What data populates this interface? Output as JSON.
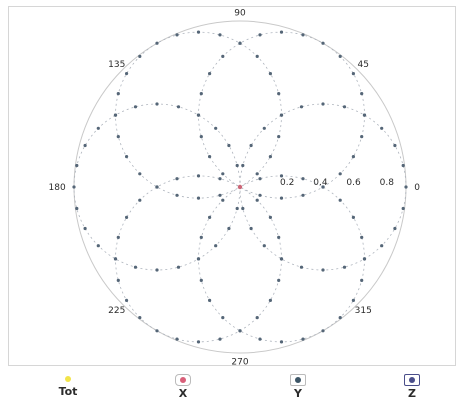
{
  "chart_data": {
    "type": "polar-scatter",
    "title": "",
    "angle_unit": "degrees",
    "angle_labels": [
      "0",
      "45",
      "90",
      "135",
      "180",
      "225",
      "270",
      "315"
    ],
    "radial_ticks": [
      0.2,
      0.4,
      0.6,
      0.8
    ],
    "radial_tick_labels": [
      "0.2",
      "0.4",
      "0.6",
      "0.8"
    ],
    "rlim": [
      0,
      1
    ],
    "grid": false,
    "legend_position": "bottom",
    "series": [
      {
        "name": "Tot",
        "color": "#f2e44a",
        "marker": "dot",
        "values": []
      },
      {
        "name": "X",
        "color": "#d9607a",
        "marker": "dot",
        "center": [
          0.5,
          0
        ],
        "radius": 0.5,
        "point_count": 24
      },
      {
        "name": "Y",
        "color": "#3c5566",
        "marker": "dot",
        "center": [
          0.5,
          120
        ],
        "radius": 0.5,
        "point_count": 24
      },
      {
        "name": "Z",
        "color": "#4a4e8a",
        "marker": "dot",
        "center": [
          0.5,
          240
        ],
        "radius": 0.5,
        "point_count": 24
      }
    ],
    "extra_series_note": ""
  }
}
